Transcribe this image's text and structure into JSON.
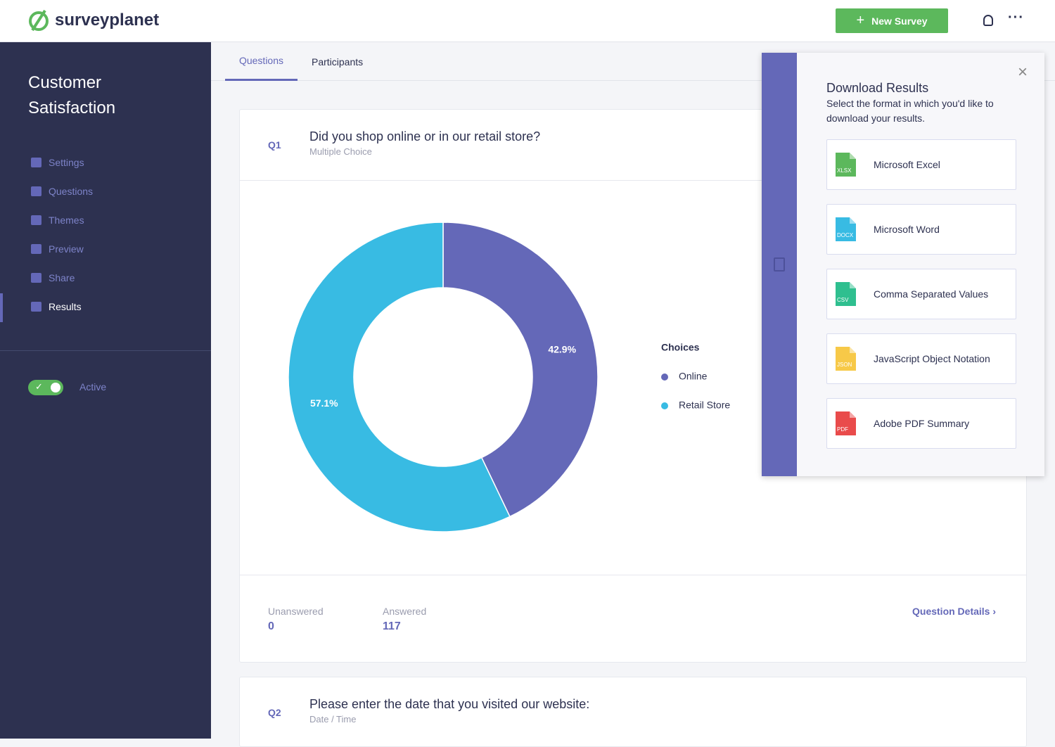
{
  "header": {
    "logo": "surveyplanet",
    "new_survey": "New Survey"
  },
  "sidebar": {
    "title": "Customer Satisfaction",
    "nav": [
      "Settings",
      "Questions",
      "Themes",
      "Preview",
      "Share",
      "Results"
    ],
    "status": "Active"
  },
  "tabs": [
    "Questions",
    "Participants"
  ],
  "questions": [
    {
      "number": "Q1",
      "text": "Did you shop online or in our retail store?",
      "kind": "Multiple Choice",
      "chart": {
        "type": "pie",
        "legend_title": "Choices",
        "categories": [
          "Online",
          "Retail Store"
        ],
        "values": [
          42.9,
          57.1
        ],
        "value_labels": [
          "42.9%",
          "57.1%"
        ],
        "colors": [
          "#6468b8",
          "#38bbe3"
        ]
      },
      "stats": [
        {
          "label": "Unanswered",
          "value": 0
        },
        {
          "label": "Answered",
          "value": 117
        }
      ],
      "details": "Question Details"
    },
    {
      "number": "Q2",
      "text": "Please enter the date that you visited our website:",
      "kind": "Date / Time"
    }
  ],
  "download": {
    "title": "Download Results",
    "description": "Select the format in which you'd like to download your results.",
    "formats": [
      {
        "badge": "XLSX",
        "label": "Microsoft Excel",
        "color": "#5cb85c"
      },
      {
        "badge": "DOCX",
        "label": "Microsoft Word",
        "color": "#38bbe3"
      },
      {
        "badge": "CSV",
        "label": "Comma Separated Values",
        "color": "#2fbf8f"
      },
      {
        "badge": "JSON",
        "label": "JavaScript Object Notation",
        "color": "#f7c948"
      },
      {
        "badge": "PDF",
        "label": "Adobe PDF Summary",
        "color": "#e94b4b"
      }
    ]
  }
}
